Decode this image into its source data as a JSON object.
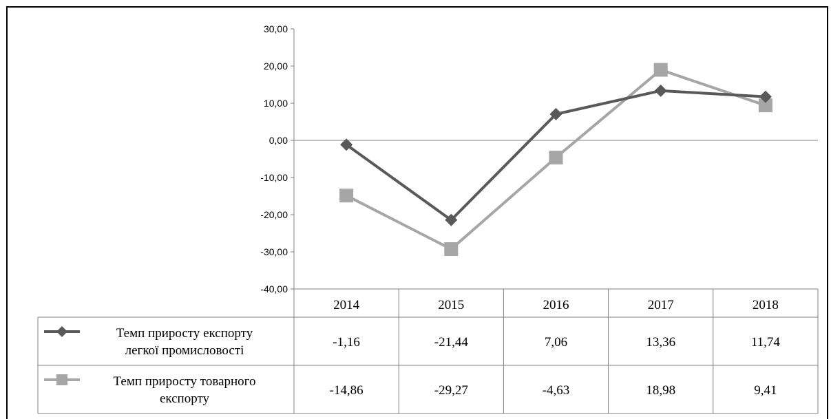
{
  "chart_data": {
    "type": "line",
    "categories": [
      "2014",
      "2015",
      "2016",
      "2017",
      "2018"
    ],
    "series": [
      {
        "name_lines": [
          "Темп приросту експорту",
          "легкої промисловості"
        ],
        "values": [
          -1.16,
          -21.44,
          7.06,
          13.36,
          11.74
        ],
        "value_labels": [
          "-1,16",
          "-21,44",
          "7,06",
          "13,36",
          "11,74"
        ],
        "color": "#595959",
        "marker": "diamond"
      },
      {
        "name_lines": [
          "Темп приросту товарного",
          "експорту"
        ],
        "values": [
          -14.86,
          -29.27,
          -4.63,
          18.98,
          9.41
        ],
        "value_labels": [
          "-14,86",
          "-29,27",
          "-4,63",
          "18,98",
          "9,41"
        ],
        "color": "#a6a6a6",
        "marker": "square"
      }
    ],
    "ylim": [
      -40,
      30
    ],
    "yticks": [
      30,
      20,
      10,
      0,
      -10,
      -20,
      -30,
      -40
    ],
    "ytick_labels": [
      "30,00",
      "20,00",
      "10,00",
      "0,00",
      "-10,00",
      "-20,00",
      "-30,00",
      "-40,00"
    ],
    "legend": "data-table"
  }
}
